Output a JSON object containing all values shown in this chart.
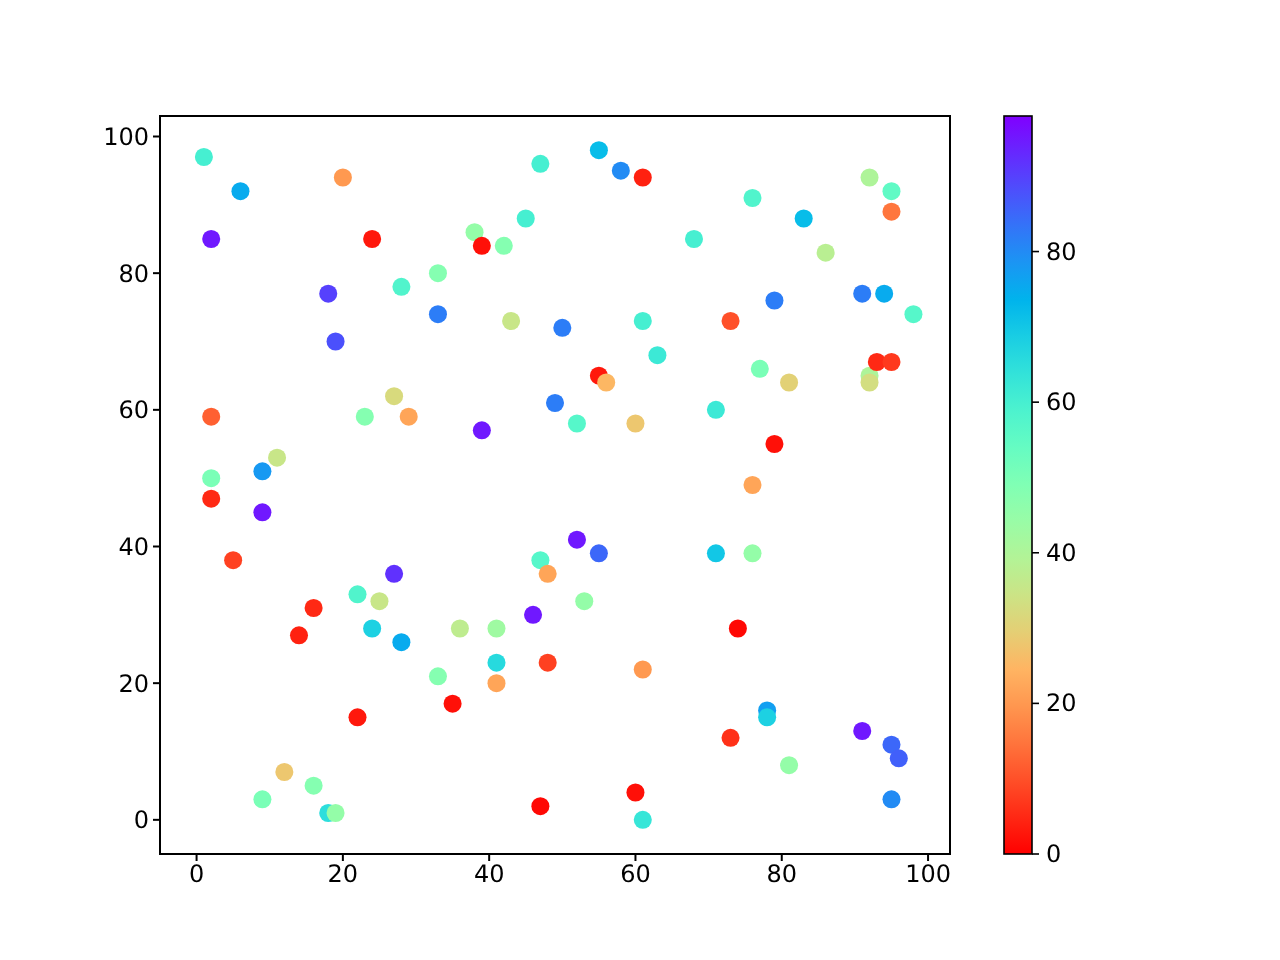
{
  "chart_data": {
    "type": "scatter",
    "marker": "circle",
    "x": [
      1,
      6,
      2,
      20,
      24,
      28,
      33,
      18,
      19,
      33,
      38,
      39,
      42,
      45,
      47,
      43,
      2,
      2,
      2,
      9,
      11,
      5,
      9,
      23,
      27,
      29,
      39,
      49,
      50,
      55,
      58,
      61,
      68,
      76,
      83,
      86,
      92,
      95,
      95,
      61,
      63,
      55,
      56,
      60,
      52,
      71,
      73,
      79,
      77,
      81,
      91,
      94,
      98,
      92,
      92,
      93,
      95,
      79,
      76,
      16,
      14,
      22,
      24,
      25,
      27,
      28,
      33,
      35,
      36,
      41,
      41,
      41,
      46,
      47,
      48,
      48,
      22,
      12,
      16,
      9,
      18,
      19,
      47,
      52,
      55,
      53,
      61,
      60,
      61,
      71,
      76,
      74,
      73,
      78,
      78,
      81,
      91,
      95,
      96,
      95
    ],
    "values": [
      97,
      92,
      85,
      94,
      85,
      78,
      80,
      77,
      70,
      74,
      86,
      84,
      84,
      88,
      96,
      73,
      59,
      50,
      47,
      51,
      53,
      38,
      45,
      59,
      62,
      59,
      57,
      61,
      72,
      98,
      95,
      94,
      85,
      91,
      88,
      83,
      94,
      92,
      89,
      73,
      68,
      65,
      64,
      58,
      58,
      60,
      73,
      76,
      66,
      64,
      77,
      77,
      74,
      65,
      64,
      67,
      67,
      55,
      49,
      31,
      27,
      33,
      28,
      32,
      36,
      26,
      21,
      17,
      28,
      28,
      23,
      20,
      30,
      38,
      36,
      23,
      15,
      7,
      5,
      3,
      1,
      1,
      2,
      41,
      39,
      32,
      22,
      4,
      0,
      39,
      39,
      28,
      12,
      16,
      15,
      8,
      13,
      11,
      9,
      3
    ],
    "cvalues": [
      60,
      75,
      95,
      20,
      3,
      58,
      48,
      90,
      88,
      82,
      45,
      2,
      48,
      60,
      60,
      35,
      12,
      50,
      5,
      78,
      35,
      8,
      95,
      48,
      32,
      22,
      95,
      82,
      82,
      72,
      80,
      4,
      60,
      58,
      72,
      38,
      40,
      55,
      15,
      60,
      62,
      3,
      25,
      28,
      57,
      62,
      10,
      82,
      50,
      30,
      82,
      75,
      57,
      40,
      33,
      5,
      7,
      2,
      22,
      5,
      4,
      58,
      68,
      35,
      92,
      75,
      48,
      2,
      37,
      43,
      66,
      22,
      95,
      57,
      22,
      8,
      3,
      28,
      48,
      50,
      65,
      45,
      1,
      95,
      85,
      45,
      20,
      2,
      63,
      70,
      45,
      1,
      6,
      77,
      68,
      45,
      95,
      85,
      86,
      80
    ],
    "xlim": [
      -5,
      103
    ],
    "ylim": [
      -5,
      103
    ],
    "xticks": [
      0,
      20,
      40,
      60,
      80,
      100
    ],
    "yticks": [
      0,
      20,
      40,
      60,
      80,
      100
    ],
    "clim": [
      0,
      98
    ],
    "cticks": [
      0,
      20,
      40,
      60,
      80
    ]
  }
}
